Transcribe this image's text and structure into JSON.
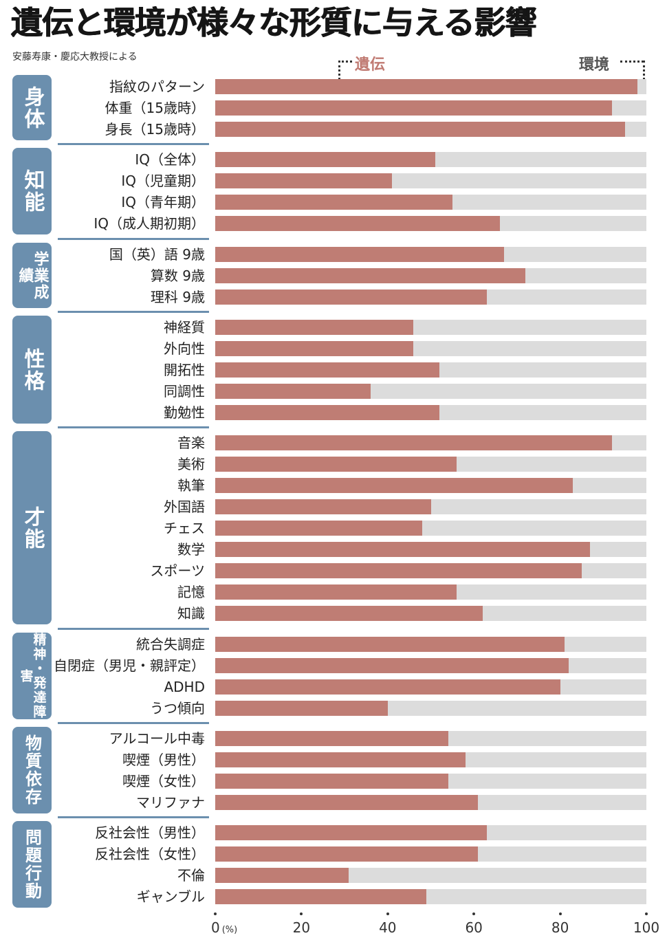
{
  "header": {
    "title": "遺伝と環境が様々な形質に与える影響",
    "subtitle": "安藤寿康・慶応大教授による"
  },
  "legend": {
    "gene": "遺伝",
    "environment": "環境"
  },
  "colors": {
    "gene": "#bf7d74",
    "environment": "#dcdcdc",
    "group_tab": "#6b8fae"
  },
  "axis": {
    "ticks": [
      "0",
      "20",
      "40",
      "60",
      "80",
      "100"
    ],
    "unit": "(%)"
  },
  "chart_data": {
    "type": "bar",
    "orientation": "horizontal-stacked",
    "title": "遺伝と環境が様々な形質に与える影響",
    "subtitle": "安藤寿康・慶応大教授による",
    "xlabel": "(%)",
    "xlim": [
      0,
      100
    ],
    "series_names": [
      "遺伝",
      "環境"
    ],
    "groups": [
      {
        "name": "身体",
        "items": [
          {
            "label": "指紋のパターン",
            "gene": 98,
            "env": 2
          },
          {
            "label": "体重（15歳時）",
            "gene": 92,
            "env": 8
          },
          {
            "label": "身長（15歳時）",
            "gene": 95,
            "env": 5
          }
        ]
      },
      {
        "name": "知能",
        "items": [
          {
            "label": "IQ（全体）",
            "gene": 51,
            "env": 49
          },
          {
            "label": "IQ（児童期）",
            "gene": 41,
            "env": 59
          },
          {
            "label": "IQ（青年期）",
            "gene": 55,
            "env": 45
          },
          {
            "label": "IQ（成人期初期）",
            "gene": 66,
            "env": 34
          }
        ]
      },
      {
        "name": "学業成績",
        "items": [
          {
            "label": "国（英）語 9歳",
            "gene": 67,
            "env": 33
          },
          {
            "label": "算数 9歳",
            "gene": 72,
            "env": 28
          },
          {
            "label": "理科 9歳",
            "gene": 63,
            "env": 37
          }
        ]
      },
      {
        "name": "性格",
        "items": [
          {
            "label": "神経質",
            "gene": 46,
            "env": 54
          },
          {
            "label": "外向性",
            "gene": 46,
            "env": 54
          },
          {
            "label": "開拓性",
            "gene": 52,
            "env": 48
          },
          {
            "label": "同調性",
            "gene": 36,
            "env": 64
          },
          {
            "label": "勤勉性",
            "gene": 52,
            "env": 48
          }
        ]
      },
      {
        "name": "才能",
        "items": [
          {
            "label": "音楽",
            "gene": 92,
            "env": 8
          },
          {
            "label": "美術",
            "gene": 56,
            "env": 44
          },
          {
            "label": "執筆",
            "gene": 83,
            "env": 17
          },
          {
            "label": "外国語",
            "gene": 50,
            "env": 50
          },
          {
            "label": "チェス",
            "gene": 48,
            "env": 52
          },
          {
            "label": "数学",
            "gene": 87,
            "env": 13
          },
          {
            "label": "スポーツ",
            "gene": 85,
            "env": 15
          },
          {
            "label": "記憶",
            "gene": 56,
            "env": 44
          },
          {
            "label": "知識",
            "gene": 62,
            "env": 38
          }
        ]
      },
      {
        "name": "精神・発達障害",
        "items": [
          {
            "label": "統合失調症",
            "gene": 81,
            "env": 19
          },
          {
            "label": "自閉症（男児・親評定）",
            "gene": 82,
            "env": 18
          },
          {
            "label": "ADHD",
            "gene": 80,
            "env": 20
          },
          {
            "label": "うつ傾向",
            "gene": 40,
            "env": 60
          }
        ]
      },
      {
        "name": "物質依存",
        "items": [
          {
            "label": "アルコール中毒",
            "gene": 54,
            "env": 46
          },
          {
            "label": "喫煙（男性）",
            "gene": 58,
            "env": 42
          },
          {
            "label": "喫煙（女性）",
            "gene": 54,
            "env": 46
          },
          {
            "label": "マリファナ",
            "gene": 61,
            "env": 39
          }
        ]
      },
      {
        "name": "問題行動",
        "items": [
          {
            "label": "反社会性（男性）",
            "gene": 63,
            "env": 37
          },
          {
            "label": "反社会性（女性）",
            "gene": 61,
            "env": 39
          },
          {
            "label": "不倫",
            "gene": 31,
            "env": 69
          },
          {
            "label": "ギャンブル",
            "gene": 49,
            "env": 51
          }
        ]
      }
    ],
    "grid": false,
    "legend_position": "top"
  }
}
